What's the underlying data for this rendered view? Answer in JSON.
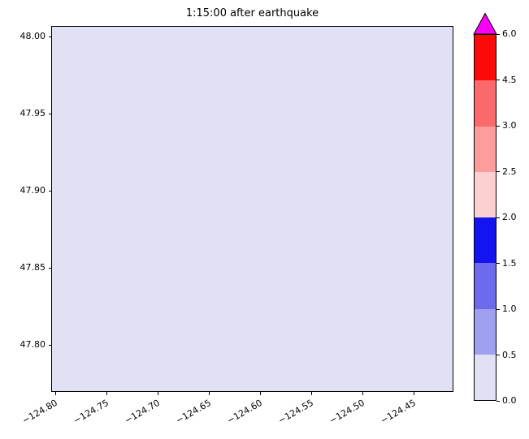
{
  "title": "1:15:00 after earthquake",
  "plot": {
    "fill_color": "#e1e1f6",
    "border_color": "#000000"
  },
  "axes": {
    "x_tick_labels": [
      "−124.80",
      "−124.75",
      "−124.70",
      "−124.65",
      "−124.60",
      "−124.55",
      "−124.50",
      "−124.45"
    ],
    "y_tick_labels": [
      "48.00",
      "47.95",
      "47.90",
      "47.85",
      "47.80"
    ]
  },
  "colorbar": {
    "tick_labels": [
      "0.0",
      "0.5",
      "1.0",
      "1.5",
      "2.0",
      "2.5",
      "3.0",
      "4.5",
      "6.0"
    ],
    "segment_colors": [
      "#e1e1f6",
      "#a0a0f0",
      "#6b6beb",
      "#1414f0",
      "#fcd0d0",
      "#fc9c9c",
      "#fa6a6a",
      "#fc0a0a"
    ],
    "extend_color": "#f800f8"
  },
  "chart_data": {
    "type": "heatmap",
    "title": "1:15:00 after earthquake",
    "xlabel": "",
    "ylabel": "",
    "x_ticks": [
      -124.8,
      -124.75,
      -124.7,
      -124.65,
      -124.6,
      -124.55,
      -124.5,
      -124.45
    ],
    "y_ticks": [
      47.8,
      47.85,
      47.9,
      47.95,
      48.0
    ],
    "x_range": [
      -124.805,
      -124.41
    ],
    "y_range": [
      47.77,
      48.005
    ],
    "levels": [
      0.0,
      0.5,
      1.0,
      1.5,
      2.0,
      2.5,
      3.0,
      4.5,
      6.0
    ],
    "level_colors": [
      "#e1e1f6",
      "#a0a0f0",
      "#6b6beb",
      "#1414f0",
      "#fcd0d0",
      "#fc9c9c",
      "#fa6a6a",
      "#fc0a0a"
    ],
    "over_color": "#f800f8",
    "colorbar_extend": "max",
    "field_description": "uniform field; entire mapped region falls in lowest bin",
    "uniform_value_bin": [
      0.0,
      0.5
    ],
    "grid": false,
    "legend_position": "right-colorbar"
  }
}
